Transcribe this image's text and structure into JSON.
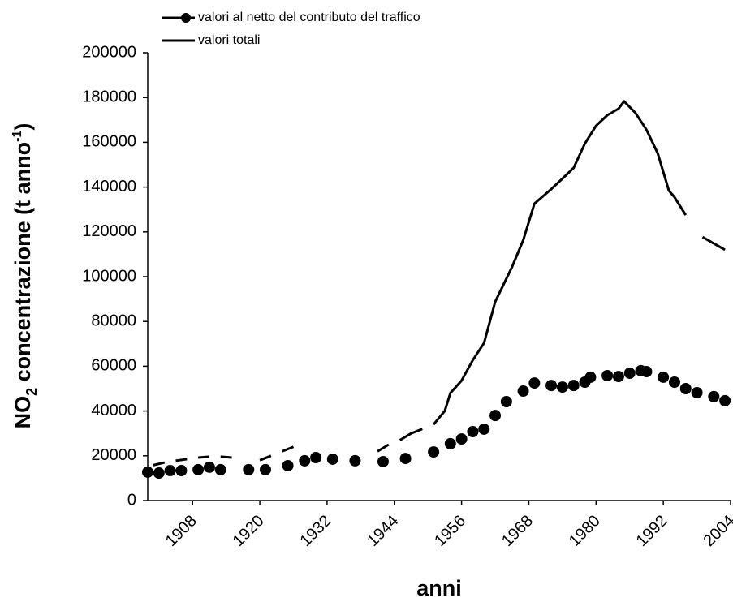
{
  "chart_data": {
    "type": "line",
    "x_label": "anni",
    "y_label": [
      "NO",
      "2",
      " concentrazione (t anno",
      "-1",
      ")"
    ],
    "xlim": [
      1900,
      2004
    ],
    "xticks": [
      1908,
      1920,
      1932,
      1944,
      1956,
      1968,
      1980,
      1992,
      2004
    ],
    "ylim": [
      0,
      200000
    ],
    "yticks": [
      0,
      20000,
      40000,
      60000,
      80000,
      100000,
      120000,
      140000,
      160000,
      180000,
      200000
    ],
    "legend": "top-left",
    "series": [
      {
        "name": "valori al netto del contributo del traffico",
        "color": "#000000",
        "marker": true,
        "x": [
          1900,
          1902,
          1904,
          1906,
          1909,
          1911,
          1913,
          1918,
          1921,
          1925,
          1928,
          1930,
          1933,
          1937,
          1942,
          1946,
          1951,
          1954,
          1956,
          1958,
          1960,
          1962,
          1964,
          1967,
          1969,
          1972,
          1974,
          1976,
          1978,
          1979,
          1982,
          1984,
          1986,
          1988,
          1989,
          1992,
          1994,
          1996,
          1998,
          2001,
          2003
        ],
        "values": [
          12700,
          12300,
          13400,
          13400,
          13800,
          14900,
          13800,
          13800,
          13800,
          15600,
          17800,
          19200,
          18500,
          17800,
          17400,
          18800,
          21700,
          25400,
          27500,
          30800,
          31900,
          38000,
          44200,
          48900,
          52500,
          51400,
          50700,
          51400,
          52900,
          55100,
          55800,
          55400,
          56900,
          58000,
          57600,
          55100,
          52900,
          50000,
          48200,
          46400,
          44600
        ]
      },
      {
        "name": "valori totali",
        "color": "#000000",
        "marker": false,
        "x": [
          1901,
          1903,
          1904,
          1905,
          1907,
          1908,
          1909,
          1911,
          1912,
          1913,
          1915,
          1917,
          1920,
          1922,
          1923,
          1924,
          1926,
          1935,
          1941,
          1943,
          1944,
          1945,
          1947,
          1949,
          1950,
          1951,
          1953,
          1954,
          1956,
          1958,
          1960,
          1962,
          1965,
          1967,
          1969,
          1972,
          1974,
          1976,
          1978,
          1980,
          1982,
          1984,
          1985,
          1987,
          1989,
          1991,
          1993,
          1994,
          1996,
          1998,
          1999,
          2003
        ],
        "values": [
          15800,
          17000,
          null,
          17800,
          18500,
          null,
          19200,
          19600,
          null,
          19600,
          19200,
          null,
          18000,
          20000,
          null,
          22000,
          24000,
          null,
          22000,
          25000,
          null,
          27000,
          30000,
          32000,
          null,
          34000,
          40000,
          48000,
          53600,
          62700,
          70300,
          88800,
          104300,
          116300,
          132600,
          139100,
          143800,
          148600,
          159400,
          167400,
          172100,
          175000,
          178300,
          173200,
          165600,
          155100,
          138400,
          135500,
          127500,
          null,
          117700,
          112000
        ]
      }
    ]
  }
}
